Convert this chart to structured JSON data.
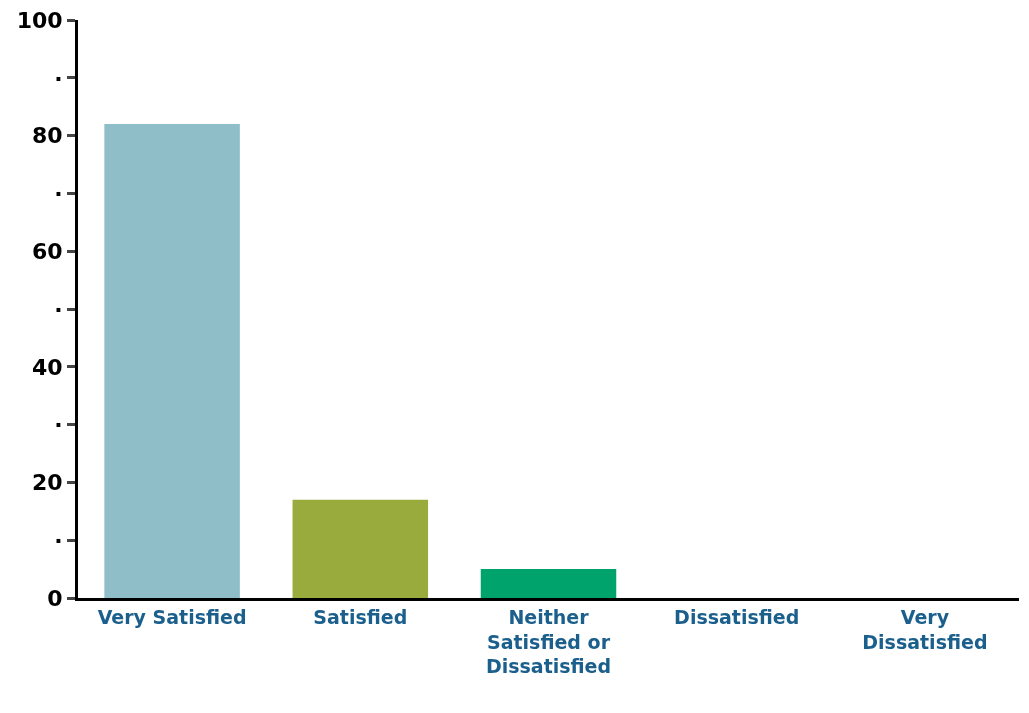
{
  "chart_data": {
    "type": "bar",
    "categories": [
      "Very Satisfied",
      "Satisfied",
      "Neither\nSatisfied or\nDissatisfied",
      "Dissatisfied",
      "Very\nDissatisfied"
    ],
    "values": [
      82,
      17,
      5,
      0,
      0
    ],
    "colors": [
      "#8fbec8",
      "#99ab3d",
      "#00a36c",
      "#00a36c",
      "#00a36c"
    ],
    "ylim": [
      0,
      100
    ],
    "yticks": [
      0,
      {
        "value": 10,
        "label": "·"
      },
      20,
      {
        "value": 30,
        "label": "·"
      },
      40,
      {
        "value": 50,
        "label": "·"
      },
      60,
      {
        "value": 70,
        "label": "·"
      },
      80,
      {
        "value": 90,
        "label": "·"
      },
      100
    ],
    "grid": false
  }
}
